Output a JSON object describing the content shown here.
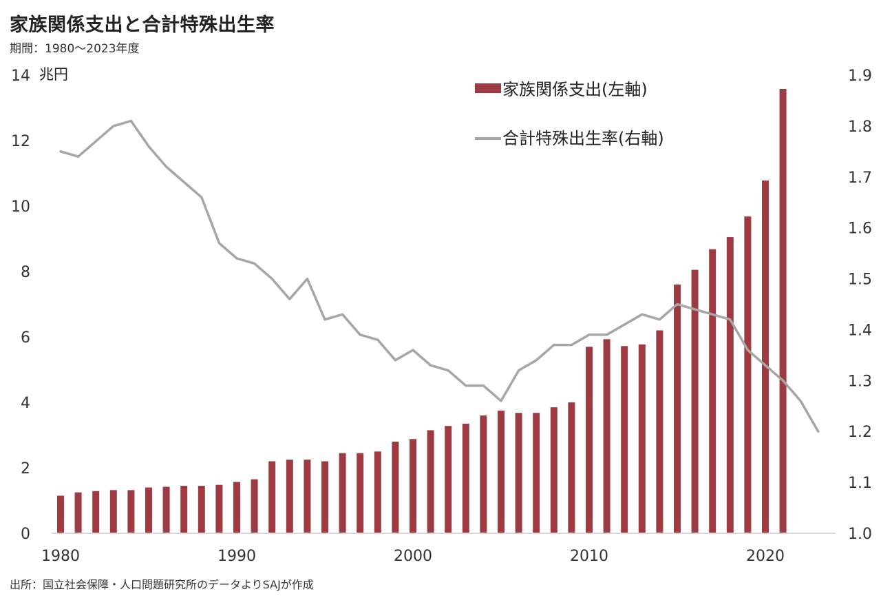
{
  "title": "家族関係支出と合計特殊出生率",
  "subtitle": "期間：1980～2023年度",
  "source": "出所：国立社会保障・人口問題研究所のデータよりSAJが作成",
  "colors": {
    "bar": "#9e3b42",
    "line": "#a6a6a6",
    "axis": "#d9d9d9"
  },
  "chart_data": {
    "type": "bar+line",
    "left_axis": {
      "unit_label": "兆円",
      "ylim": [
        0,
        14
      ],
      "ticks": [
        "0",
        "2",
        "4",
        "6",
        "8",
        "10",
        "12",
        "14"
      ]
    },
    "right_axis": {
      "ylim": [
        1.0,
        1.9
      ],
      "ticks": [
        "1.0",
        "1.1",
        "1.2",
        "1.3",
        "1.4",
        "1.5",
        "1.6",
        "1.7",
        "1.8",
        "1.9"
      ]
    },
    "x_ticks": [
      "1980",
      "1990",
      "2000",
      "2010",
      "2020"
    ],
    "legend": {
      "placement": "top-right",
      "bar_label": "家族関係支出(左軸)",
      "line_label": "合計特殊出生率(右軸)"
    },
    "years": [
      1980,
      1981,
      1982,
      1983,
      1984,
      1985,
      1986,
      1987,
      1988,
      1989,
      1990,
      1991,
      1992,
      1993,
      1994,
      1995,
      1996,
      1997,
      1998,
      1999,
      2000,
      2001,
      2002,
      2003,
      2004,
      2005,
      2006,
      2007,
      2008,
      2009,
      2010,
      2011,
      2012,
      2013,
      2014,
      2015,
      2016,
      2017,
      2018,
      2019,
      2020,
      2021,
      2022,
      2023
    ],
    "series": [
      {
        "name": "家族関係支出(左軸)",
        "axis": "left",
        "type": "bar",
        "years": [
          1980,
          1981,
          1982,
          1983,
          1984,
          1985,
          1986,
          1987,
          1988,
          1989,
          1990,
          1991,
          1992,
          1993,
          1994,
          1995,
          1996,
          1997,
          1998,
          1999,
          2000,
          2001,
          2002,
          2003,
          2004,
          2005,
          2006,
          2007,
          2008,
          2009,
          2010,
          2011,
          2012,
          2013,
          2014,
          2015,
          2016,
          2017,
          2018,
          2019,
          2020,
          2021
        ],
        "values": [
          1.15,
          1.25,
          1.29,
          1.32,
          1.32,
          1.4,
          1.42,
          1.45,
          1.45,
          1.48,
          1.57,
          1.65,
          2.2,
          2.25,
          2.25,
          2.2,
          2.45,
          2.45,
          2.5,
          2.8,
          2.88,
          3.15,
          3.28,
          3.35,
          3.6,
          3.75,
          3.68,
          3.68,
          3.85,
          4.0,
          5.7,
          5.93,
          5.72,
          5.77,
          6.2,
          7.6,
          8.05,
          8.68,
          9.05,
          9.68,
          10.78,
          13.58
        ]
      },
      {
        "name": "合計特殊出生率(右軸)",
        "axis": "right",
        "type": "line",
        "years": [
          1980,
          1981,
          1982,
          1983,
          1984,
          1985,
          1986,
          1987,
          1988,
          1989,
          1990,
          1991,
          1992,
          1993,
          1994,
          1995,
          1996,
          1997,
          1998,
          1999,
          2000,
          2001,
          2002,
          2003,
          2004,
          2005,
          2006,
          2007,
          2008,
          2009,
          2010,
          2011,
          2012,
          2013,
          2014,
          2015,
          2016,
          2017,
          2018,
          2019,
          2020,
          2021,
          2022,
          2023
        ],
        "values": [
          1.75,
          1.74,
          1.77,
          1.8,
          1.81,
          1.76,
          1.72,
          1.69,
          1.66,
          1.57,
          1.54,
          1.53,
          1.5,
          1.46,
          1.5,
          1.42,
          1.43,
          1.39,
          1.38,
          1.34,
          1.36,
          1.33,
          1.32,
          1.29,
          1.29,
          1.26,
          1.32,
          1.34,
          1.37,
          1.37,
          1.39,
          1.39,
          1.41,
          1.43,
          1.42,
          1.45,
          1.44,
          1.43,
          1.42,
          1.36,
          1.33,
          1.3,
          1.26,
          1.2
        ]
      }
    ]
  }
}
